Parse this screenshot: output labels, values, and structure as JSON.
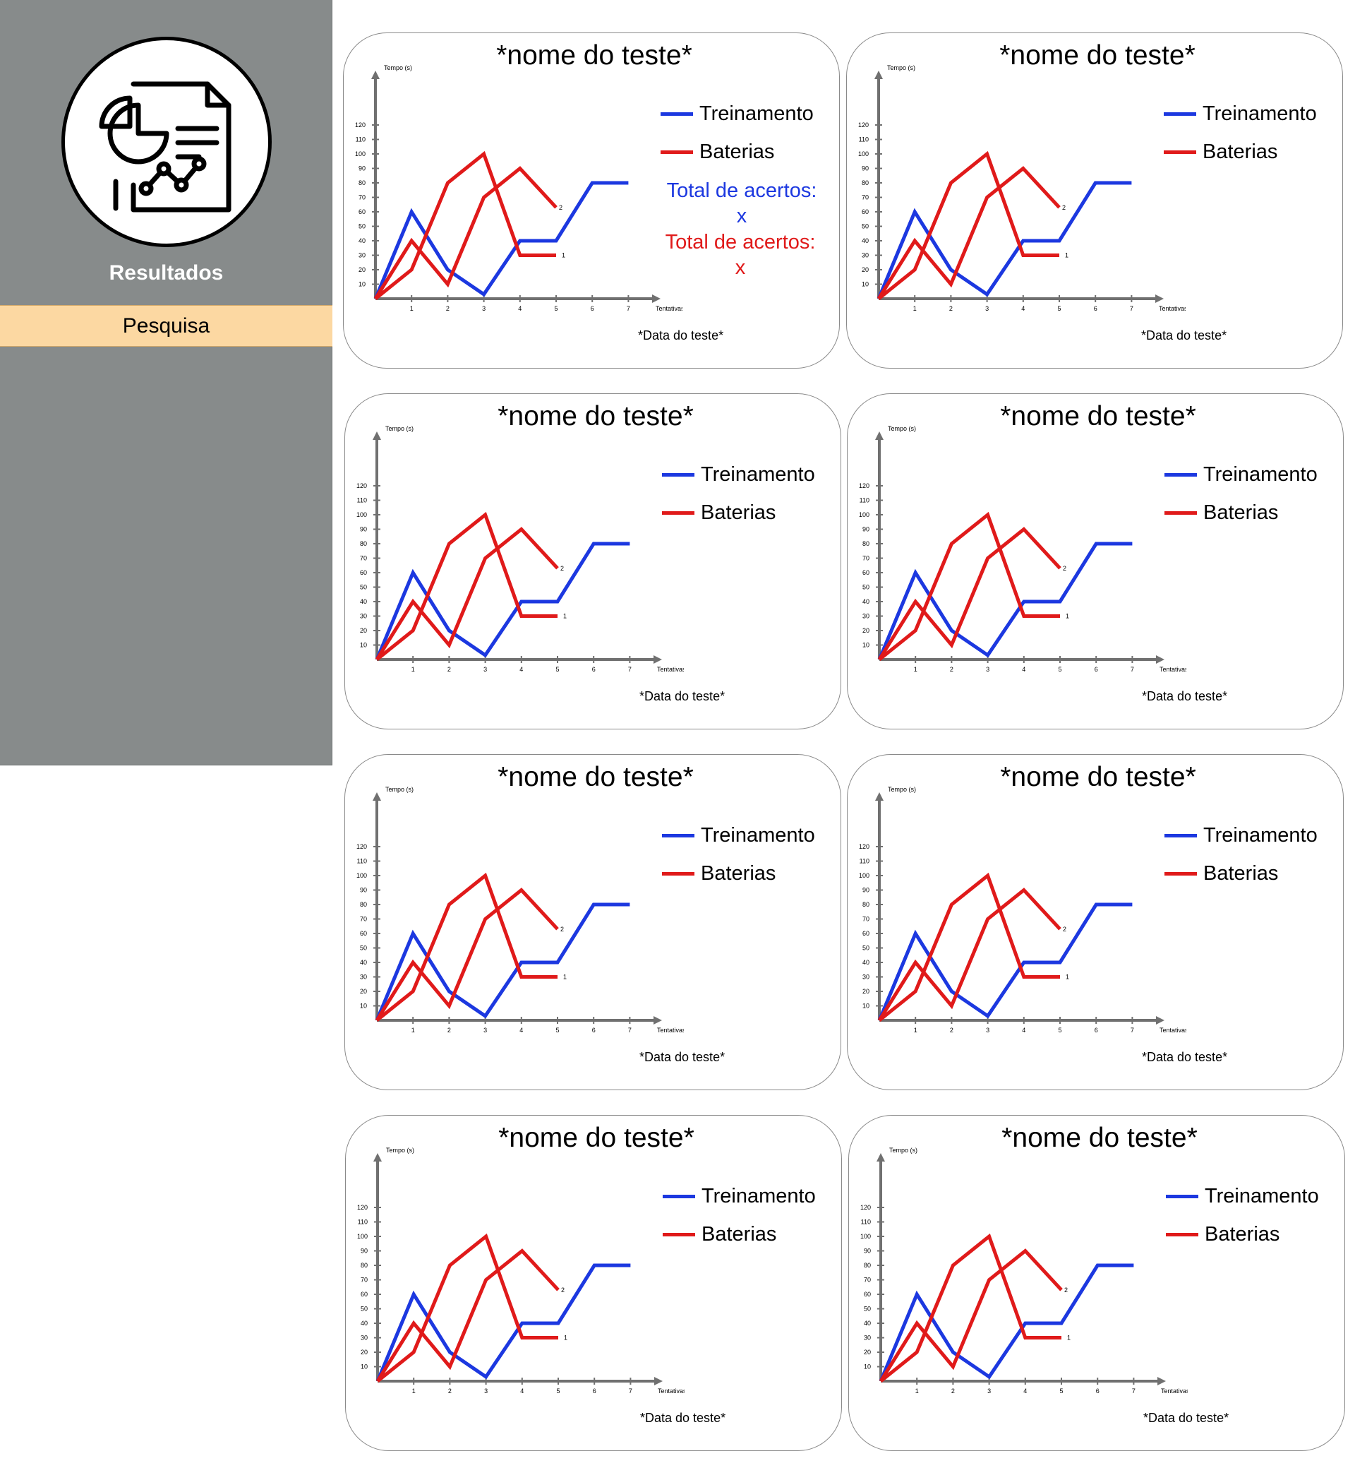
{
  "sidebar": {
    "logo_icon": "report-chart-icon",
    "title": "Resultados",
    "menu_item": "Pesquisa"
  },
  "colors": {
    "treinamento": "#1c38e0",
    "baterias": "#e01a1a",
    "axis": "#707070",
    "sidebar_bg": "#878b8b",
    "menu_bg": "#fcd8a2"
  },
  "cards": [
    {
      "title": "*nome do teste*",
      "date": "*Data do teste*",
      "legend": [
        "Treinamento",
        "Baterias"
      ],
      "acertos_blue": "Total de acertos:",
      "acertos_blue_value": "x",
      "acertos_red": "Total de acertos:",
      "acertos_red_value": "x"
    },
    {
      "title": "*nome do teste*",
      "date": "*Data do teste*",
      "legend": [
        "Treinamento",
        "Baterias"
      ]
    },
    {
      "title": "*nome do teste*",
      "date": "*Data do teste*",
      "legend": [
        "Treinamento",
        "Baterias"
      ]
    },
    {
      "title": "*nome do teste*",
      "date": "*Data do teste*",
      "legend": [
        "Treinamento",
        "Baterias"
      ]
    },
    {
      "title": "*nome do teste*",
      "date": "*Data do teste*",
      "legend": [
        "Treinamento",
        "Baterias"
      ]
    },
    {
      "title": "*nome do teste*",
      "date": "*Data do teste*",
      "legend": [
        "Treinamento",
        "Baterias"
      ]
    },
    {
      "title": "*nome do teste*",
      "date": "*Data do teste*",
      "legend": [
        "Treinamento",
        "Baterias"
      ]
    },
    {
      "title": "*nome do teste*",
      "date": "*Data do teste*",
      "legend": [
        "Treinamento",
        "Baterias"
      ]
    }
  ],
  "chart_data": {
    "type": "line",
    "xlabel": "Tentativas",
    "ylabel": "Tempo (s)",
    "x_ticks": [
      1,
      2,
      3,
      4,
      5,
      6,
      7
    ],
    "y_ticks": [
      10,
      20,
      30,
      40,
      50,
      60,
      70,
      80,
      90,
      100,
      110,
      120
    ],
    "xlim": [
      0,
      8
    ],
    "ylim": [
      0,
      125
    ],
    "series": [
      {
        "name": "Treinamento",
        "x": [
          0,
          1,
          2,
          3,
          4,
          5,
          6,
          7
        ],
        "y": [
          0,
          60,
          20,
          3,
          40,
          40,
          80,
          80
        ]
      },
      {
        "name": "Baterias",
        "label": "1",
        "x": [
          0,
          1,
          2,
          3,
          4,
          5
        ],
        "y": [
          0,
          40,
          10,
          70,
          90,
          63
        ]
      },
      {
        "name": "Baterias",
        "label": "2",
        "x": [
          0,
          1,
          2,
          3,
          4,
          5
        ],
        "y": [
          0,
          20,
          80,
          100,
          30,
          30
        ]
      }
    ],
    "end_labels": [
      "2",
      "1"
    ]
  }
}
